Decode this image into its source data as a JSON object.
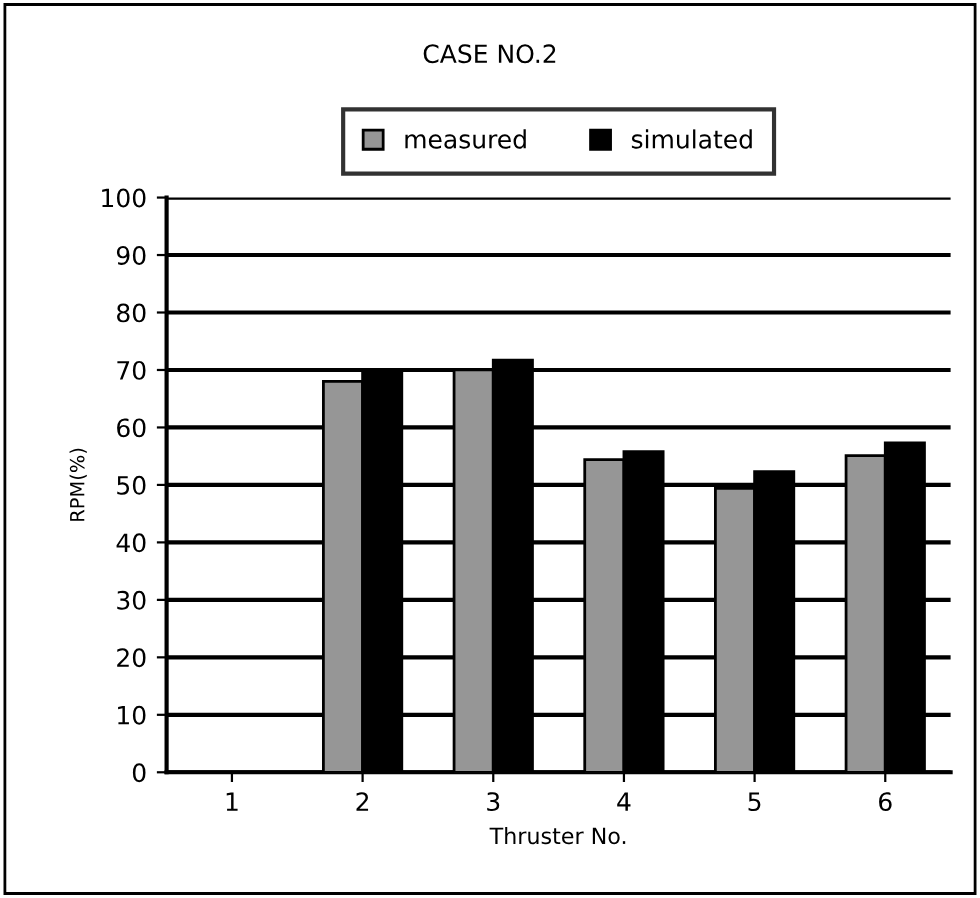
{
  "chart_data": {
    "type": "bar",
    "title": "CASE NO.2",
    "xlabel": "Thruster No.",
    "ylabel": "RPM(%)",
    "categories": [
      "1",
      "2",
      "3",
      "4",
      "5",
      "6"
    ],
    "series": [
      {
        "name": "measured",
        "color": "#969696",
        "values": [
          null,
          68,
          70,
          54.4,
          49.4,
          55.1
        ]
      },
      {
        "name": "simulated",
        "color": "#000000",
        "values": [
          null,
          70,
          71.7,
          55.8,
          52.3,
          57.3
        ]
      }
    ],
    "ylim": [
      0,
      100
    ],
    "yticks": [
      0,
      10,
      20,
      30,
      40,
      50,
      60,
      70,
      80,
      90,
      100
    ],
    "grid": "y",
    "legend": "top"
  }
}
